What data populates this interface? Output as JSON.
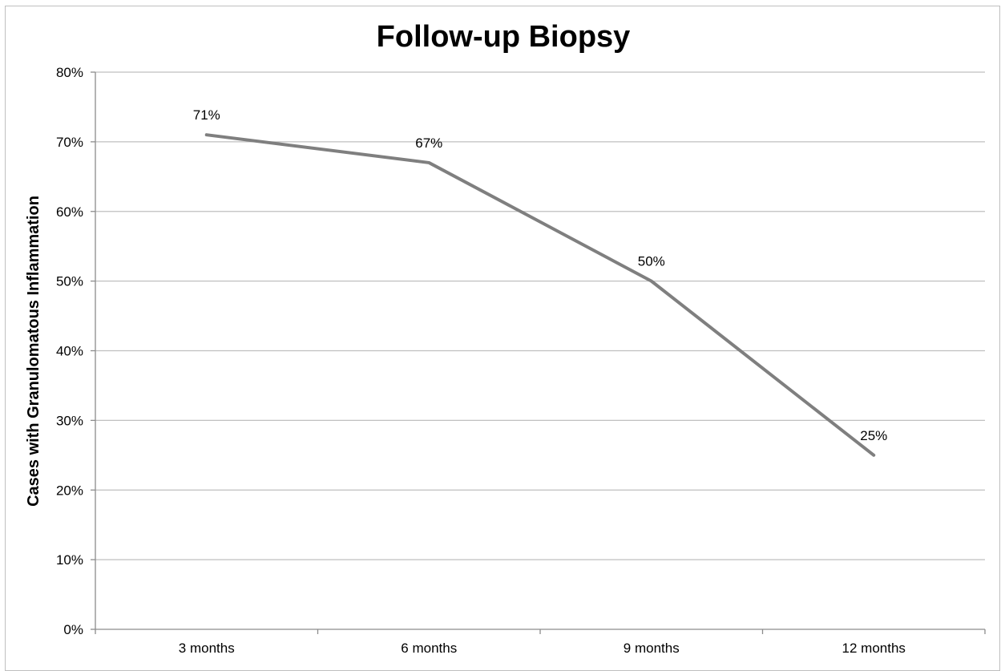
{
  "chart_data": {
    "type": "line",
    "title": "Follow-up Biopsy",
    "xlabel": "",
    "ylabel": "Cases with Granulomatous Inflammation",
    "categories": [
      "3 months",
      "6 months",
      "9 months",
      "12 months"
    ],
    "series": [
      {
        "values": [
          71,
          67,
          50,
          25
        ]
      }
    ],
    "data_labels": [
      "71%",
      "67%",
      "50%",
      "25%"
    ],
    "ylim": [
      0,
      80
    ],
    "yticks": [
      0,
      10,
      20,
      30,
      40,
      50,
      60,
      70,
      80
    ],
    "ytick_labels": [
      "0%",
      "10%",
      "20%",
      "30%",
      "40%",
      "50%",
      "60%",
      "70%",
      "80%"
    ],
    "grid": true,
    "legend": "none",
    "colors": {
      "line": "#7f7f7f",
      "grid": "#bfbfbf",
      "axis": "#8c8c8c"
    }
  }
}
